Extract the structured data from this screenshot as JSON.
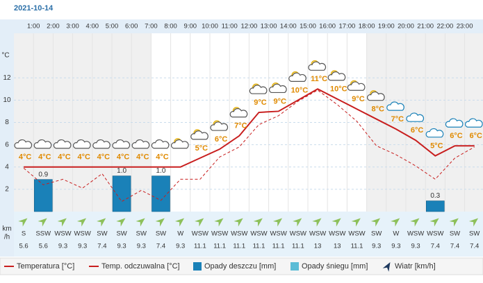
{
  "chart_data": {
    "type": "weather",
    "title": "2021-10-14",
    "hour_labels": [
      "1:00",
      "2:00",
      "3:00",
      "4:00",
      "5:00",
      "6:00",
      "7:00",
      "8:00",
      "9:00",
      "10:00",
      "11:00",
      "12:00",
      "13:00",
      "14:00",
      "15:00",
      "16:00",
      "17:00",
      "18:00",
      "19:00",
      "20:00",
      "21:00",
      "22:00",
      "23:00"
    ],
    "y_unit": "°C",
    "ylim": [
      0,
      16
    ],
    "yticks": [
      2,
      4,
      6,
      8,
      10,
      12
    ],
    "y2lim": [
      0,
      5
    ],
    "grid": true,
    "wind_unit": [
      "km",
      "/h"
    ],
    "series": [
      {
        "name": "Temperatura [°C]",
        "color": "#c81e1e",
        "values": [
          4,
          4,
          4,
          4,
          4,
          4,
          4,
          4,
          4,
          4.8,
          5.6,
          6.8,
          8.9,
          9.0,
          10,
          11,
          10.1,
          9.2,
          8.3,
          7.4,
          6.4,
          5,
          5.9,
          5.9
        ],
        "value_labels": [
          "4°C",
          "4°C",
          "4°C",
          "4°C",
          "4°C",
          "4°C",
          "4°C",
          "4°C",
          null,
          "5°C",
          "6°C",
          "7°C",
          "9°C",
          "9°C",
          "10°C",
          "11°C",
          "10°C",
          "9°C",
          "8°C",
          "7°C",
          "6°C",
          "5°C",
          "6°C",
          "6°C"
        ]
      },
      {
        "name": "Temp. odczuwalna [°C]",
        "color": "#c81e1e",
        "values": [
          3.9,
          2.4,
          2.9,
          2.1,
          3.4,
          0.9,
          1.9,
          1.0,
          2.9,
          2.9,
          4.9,
          5.8,
          7.8,
          8.6,
          9.9,
          10.9,
          9.6,
          8.1,
          5.9,
          5.1,
          4.1,
          2.9,
          4.8,
          5.8
        ]
      },
      {
        "name": "Opady deszczu [mm]",
        "color": "#1a81b8",
        "axis": "y2",
        "values": [
          0,
          0.9,
          0,
          0,
          0,
          1.0,
          0,
          1.0,
          0,
          0,
          0,
          0,
          0,
          0,
          0,
          0,
          0,
          0,
          0,
          0,
          0,
          0.3,
          0,
          0
        ],
        "value_labels": [
          null,
          "0.9",
          null,
          null,
          null,
          "1.0",
          null,
          "1.0",
          null,
          null,
          null,
          null,
          null,
          null,
          null,
          null,
          null,
          null,
          null,
          null,
          null,
          "0.3",
          null,
          null
        ]
      },
      {
        "name": "Opady śniegu [mm]",
        "color": "#5bbcd6",
        "axis": "y2",
        "values": [
          0,
          0,
          0,
          0,
          0,
          0,
          0,
          0,
          0,
          0,
          0,
          0,
          0,
          0,
          0,
          0,
          0,
          0,
          0,
          0,
          0,
          0,
          0,
          0
        ]
      },
      {
        "name": "Wiatr [km/h]",
        "color": "#8dc05a",
        "directions": [
          "S",
          "SSW",
          "WSW",
          "WSW",
          "SW",
          "SW",
          "SW",
          "SW",
          "W",
          "WSW",
          "WSW",
          "WSW",
          "WSW",
          "WSW",
          "WSW",
          "WSW",
          "WSW",
          "WSW",
          "SW",
          "W",
          "WSW",
          "WSW",
          "SW",
          "SW"
        ],
        "values": [
          5.6,
          5.6,
          9.3,
          9.3,
          7.4,
          9.3,
          9.3,
          7.4,
          9.3,
          11.1,
          11.1,
          11.1,
          11.1,
          11.1,
          11.1,
          13,
          13,
          11.1,
          9.3,
          9.3,
          9.3,
          7.4,
          7.4,
          7.4
        ]
      }
    ]
  }
}
